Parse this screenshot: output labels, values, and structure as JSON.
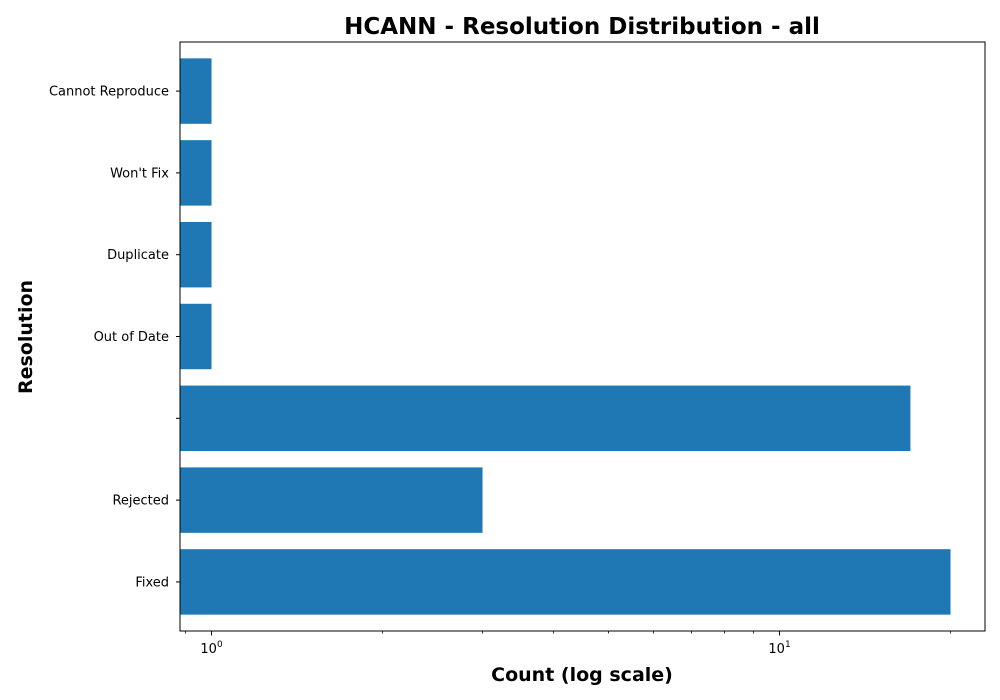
{
  "chart_data": {
    "type": "bar",
    "orientation": "horizontal",
    "title": "HCANN - Resolution Distribution - all",
    "xlabel": "Count (log scale)",
    "ylabel": "Resolution",
    "x_scale": "log",
    "xlim": [
      0.88,
      23
    ],
    "x_ticks": [
      {
        "value": 1,
        "base": "10",
        "exp": "0"
      },
      {
        "value": 10,
        "base": "10",
        "exp": "1"
      }
    ],
    "categories": [
      "Fixed",
      "Rejected",
      "",
      "Out of Date",
      "Duplicate",
      "Won't Fix",
      "Cannot Reproduce"
    ],
    "values": [
      20,
      3,
      17,
      1,
      1,
      1,
      1
    ],
    "bar_color": "#1f77b4",
    "grid": false,
    "legend": false
  }
}
